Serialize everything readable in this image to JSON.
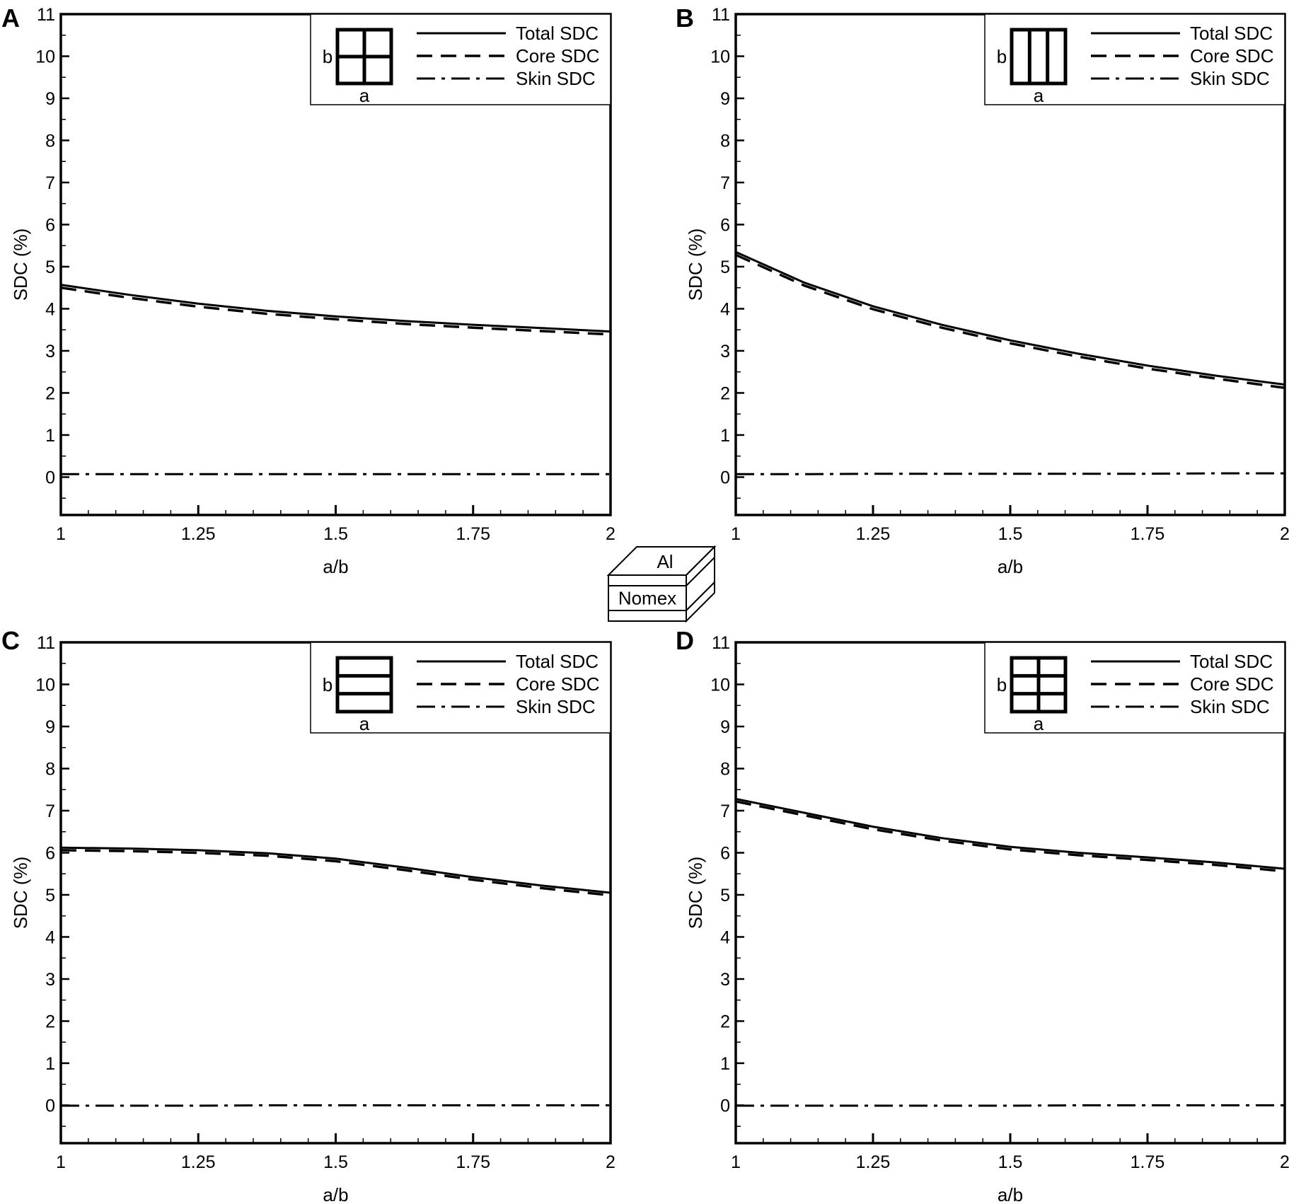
{
  "legend_labels": [
    "Total SDC",
    "Core SDC",
    "Skin SDC"
  ],
  "inset": {
    "top_label": "Al",
    "core_label": "Nomex"
  },
  "chart_data": [
    {
      "type": "line",
      "panel_label": "A",
      "xlabel": "a/b",
      "ylabel": "SDC (%)",
      "xlim": [
        1,
        2
      ],
      "ylim": [
        -0.9,
        11
      ],
      "xticks": [
        "1",
        "1.25",
        "1.5",
        "1.75",
        "2"
      ],
      "yticks": [
        "0",
        "1",
        "2",
        "3",
        "4",
        "5",
        "6",
        "7",
        "8",
        "9",
        "10",
        "11"
      ],
      "cell_icon": "grid-2x2",
      "cell_labels": {
        "width": "a",
        "height": "b"
      },
      "x": [
        1,
        1.125,
        1.25,
        1.375,
        1.5,
        1.625,
        1.75,
        1.875,
        2
      ],
      "series": [
        {
          "name": "Total SDC",
          "style": "solid",
          "values": [
            4.57,
            4.33,
            4.12,
            3.95,
            3.82,
            3.71,
            3.62,
            3.54,
            3.46
          ]
        },
        {
          "name": "Core SDC",
          "style": "dashed",
          "values": [
            4.5,
            4.26,
            4.05,
            3.88,
            3.75,
            3.64,
            3.55,
            3.47,
            3.39
          ]
        },
        {
          "name": "Skin SDC",
          "style": "dashdot",
          "values": [
            0.07,
            0.07,
            0.07,
            0.07,
            0.07,
            0.07,
            0.07,
            0.07,
            0.07
          ]
        }
      ]
    },
    {
      "type": "line",
      "panel_label": "B",
      "xlabel": "a/b",
      "ylabel": "SDC (%)",
      "xlim": [
        1,
        2
      ],
      "ylim": [
        -0.9,
        11
      ],
      "xticks": [
        "1",
        "1.25",
        "1.5",
        "1.75",
        "2"
      ],
      "yticks": [
        "0",
        "1",
        "2",
        "3",
        "4",
        "5",
        "6",
        "7",
        "8",
        "9",
        "10",
        "11"
      ],
      "cell_icon": "vertical-strips",
      "cell_labels": {
        "width": "a",
        "height": "b"
      },
      "x": [
        1,
        1.125,
        1.25,
        1.375,
        1.5,
        1.625,
        1.75,
        1.875,
        2
      ],
      "series": [
        {
          "name": "Total SDC",
          "style": "solid",
          "values": [
            5.35,
            4.62,
            4.06,
            3.62,
            3.25,
            2.93,
            2.65,
            2.41,
            2.2
          ]
        },
        {
          "name": "Core SDC",
          "style": "dashed",
          "values": [
            5.28,
            4.55,
            3.99,
            3.55,
            3.18,
            2.86,
            2.58,
            2.34,
            2.12
          ]
        },
        {
          "name": "Skin SDC",
          "style": "dashdot",
          "values": [
            0.07,
            0.07,
            0.08,
            0.08,
            0.08,
            0.08,
            0.08,
            0.09,
            0.09
          ]
        }
      ]
    },
    {
      "type": "line",
      "panel_label": "C",
      "xlabel": "a/b",
      "ylabel": "SDC (%)",
      "xlim": [
        1,
        2
      ],
      "ylim": [
        -0.9,
        11
      ],
      "xticks": [
        "1",
        "1.25",
        "1.5",
        "1.75",
        "2"
      ],
      "yticks": [
        "0",
        "1",
        "2",
        "3",
        "4",
        "5",
        "6",
        "7",
        "8",
        "9",
        "10",
        "11"
      ],
      "cell_icon": "horizontal-strips",
      "cell_labels": {
        "width": "a",
        "height": "b"
      },
      "x": [
        1,
        1.125,
        1.25,
        1.375,
        1.5,
        1.625,
        1.75,
        1.875,
        2
      ],
      "series": [
        {
          "name": "Total SDC",
          "style": "solid",
          "values": [
            6.12,
            6.1,
            6.06,
            5.99,
            5.86,
            5.65,
            5.42,
            5.22,
            5.05
          ]
        },
        {
          "name": "Core SDC",
          "style": "dashed",
          "values": [
            6.06,
            6.04,
            6.0,
            5.93,
            5.8,
            5.59,
            5.36,
            5.16,
            4.99
          ]
        },
        {
          "name": "Skin SDC",
          "style": "dashdot",
          "values": [
            -0.01,
            -0.01,
            -0.01,
            0.0,
            0.0,
            0.0,
            0.0,
            0.0,
            0.0
          ]
        }
      ]
    },
    {
      "type": "line",
      "panel_label": "D",
      "xlabel": "a/b",
      "ylabel": "SDC (%)",
      "xlim": [
        1,
        2
      ],
      "ylim": [
        -0.9,
        11
      ],
      "xticks": [
        "1",
        "1.25",
        "1.5",
        "1.75",
        "2"
      ],
      "yticks": [
        "0",
        "1",
        "2",
        "3",
        "4",
        "5",
        "6",
        "7",
        "8",
        "9",
        "10",
        "11"
      ],
      "cell_icon": "grid-3x3",
      "cell_labels": {
        "width": "a",
        "height": "b"
      },
      "x": [
        1,
        1.125,
        1.25,
        1.375,
        1.5,
        1.625,
        1.75,
        1.875,
        2
      ],
      "series": [
        {
          "name": "Total SDC",
          "style": "solid",
          "values": [
            7.28,
            6.95,
            6.62,
            6.35,
            6.14,
            6.0,
            5.89,
            5.77,
            5.62
          ]
        },
        {
          "name": "Core SDC",
          "style": "dashed",
          "values": [
            7.22,
            6.89,
            6.56,
            6.29,
            6.08,
            5.94,
            5.83,
            5.71,
            5.56
          ]
        },
        {
          "name": "Skin SDC",
          "style": "dashdot",
          "values": [
            -0.01,
            -0.01,
            -0.01,
            -0.01,
            -0.01,
            0.0,
            0.0,
            0.0,
            0.0
          ]
        }
      ]
    }
  ]
}
